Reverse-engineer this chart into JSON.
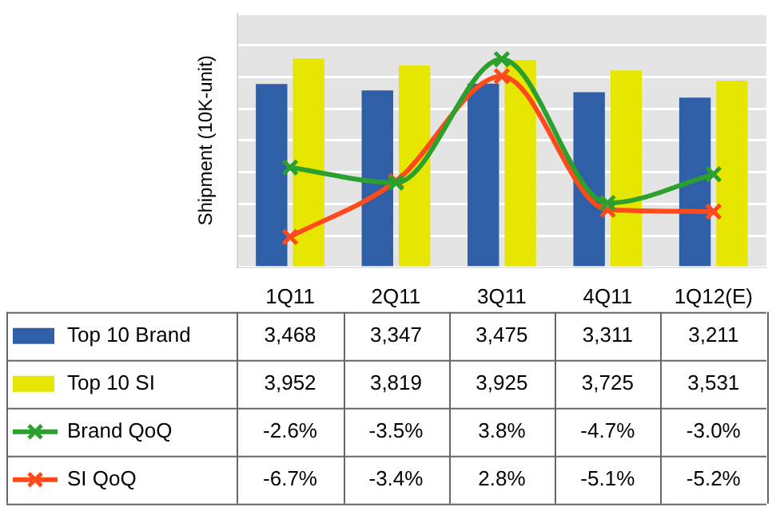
{
  "chart_data": {
    "type": "bar",
    "ylabel": "Shipment (10K-unit)",
    "categories": [
      "1Q11",
      "2Q11",
      "3Q11",
      "4Q11",
      "1Q12(E)"
    ],
    "series": [
      {
        "name": "Top 10 Brand",
        "color": "#2f5fa6",
        "values": [
          3468,
          3347,
          3475,
          3311,
          3211
        ],
        "value_labels": [
          "3,468",
          "3,347",
          "3,475",
          "3,311",
          "3,211"
        ]
      },
      {
        "name": "Top 10 SI",
        "color": "#e6e600",
        "values": [
          3952,
          3819,
          3925,
          3725,
          3531
        ],
        "value_labels": [
          "3,952",
          "3,819",
          "3,925",
          "3,725",
          "3,531"
        ]
      },
      {
        "name": "Brand QoQ",
        "type": "line",
        "axis": "y2",
        "color": "#2ca02c",
        "values": [
          -2.6,
          -3.5,
          3.8,
          -4.7,
          -3.0
        ],
        "value_labels": [
          "-2.6%",
          "-3.5%",
          "3.8%",
          "-4.7%",
          "-3.0%"
        ]
      },
      {
        "name": "SI QoQ",
        "type": "line",
        "axis": "y2",
        "color": "#ff4a1c",
        "values": [
          -6.7,
          -3.4,
          2.8,
          -5.1,
          -5.2
        ],
        "value_labels": [
          "-6.7%",
          "-3.4%",
          "2.8%",
          "-5.1%",
          "-5.2%"
        ]
      }
    ],
    "ylim": [
      0,
      4800
    ],
    "yticks": [
      {
        "value": 0,
        "label": null
      },
      {
        "value": 600,
        "label": null
      },
      {
        "value": 1200,
        "label": null
      },
      {
        "value": 1800,
        "label": null
      },
      {
        "value": 2400,
        "label": null
      },
      {
        "value": 3000,
        "label": null
      },
      {
        "value": 3600,
        "label": null
      },
      {
        "value": 4200,
        "label": null
      },
      {
        "value": 4800,
        "label": null
      }
    ],
    "y2lim": [
      -8.5,
      6.5
    ],
    "tick_labels": "x",
    "grid": "y",
    "legend": "bottom",
    "marker": "cross",
    "line_style": "solid"
  }
}
